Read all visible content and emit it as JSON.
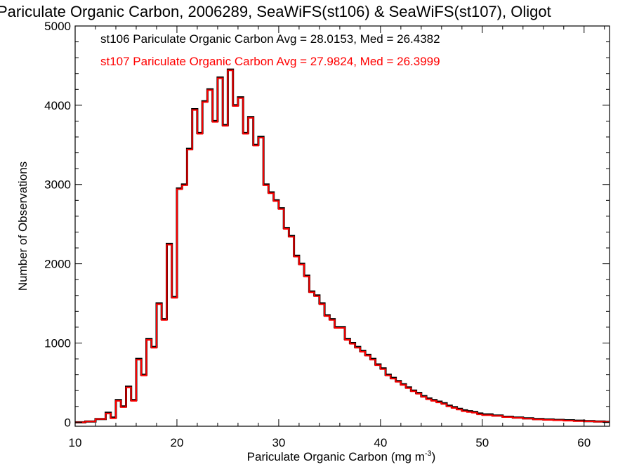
{
  "chart_data": {
    "type": "histogram",
    "title": "Pariculate Organic Carbon, 2006289, SeaWiFS(st106) & SeaWiFS(st107), Oligot",
    "xlabel": "Pariculate Organic Carbon (mg m",
    "xlabel_sup": "-3",
    "xlabel_end": ")",
    "ylabel": "Number of Observations",
    "xlim": [
      10,
      62.5
    ],
    "ylim": [
      -50,
      5000
    ],
    "xticks": [
      10,
      20,
      30,
      40,
      50,
      60
    ],
    "yticks": [
      0,
      1000,
      2000,
      3000,
      4000,
      5000
    ],
    "grid": false,
    "legend_position": "top-left",
    "series": [
      {
        "name": "st106",
        "color": "#000000",
        "annotation": "st106 Pariculate Organic Carbon Avg = 28.0153, Med = 26.4382",
        "x": [
          10,
          11,
          12,
          13,
          13.5,
          14,
          14.5,
          15,
          15.5,
          16,
          16.5,
          17,
          17.5,
          18,
          18.5,
          19,
          19.5,
          20,
          20.5,
          21,
          21.5,
          22,
          22.5,
          23,
          23.5,
          24,
          24.5,
          25,
          25.5,
          26,
          26.5,
          27,
          27.5,
          28,
          28.5,
          29,
          29.5,
          30,
          30.5,
          31,
          31.5,
          32,
          32.5,
          33,
          33.5,
          34,
          34.5,
          35,
          35.5,
          36,
          36.5,
          37,
          37.5,
          38,
          38.5,
          39,
          39.5,
          40,
          40.5,
          41,
          41.5,
          42,
          42.5,
          43,
          43.5,
          44,
          44.5,
          45,
          45.5,
          46,
          46.5,
          47,
          47.5,
          48,
          48.5,
          49,
          49.5,
          50,
          51,
          52,
          53,
          54,
          55,
          56,
          57,
          58,
          59,
          60,
          61,
          62
        ],
        "y": [
          0,
          10,
          40,
          120,
          60,
          280,
          200,
          450,
          280,
          800,
          600,
          1050,
          950,
          1500,
          1300,
          2250,
          1580,
          2950,
          3000,
          3450,
          3950,
          3650,
          4050,
          4200,
          3800,
          4350,
          3750,
          4450,
          4000,
          4100,
          3650,
          3850,
          3500,
          3600,
          3000,
          2900,
          2800,
          2700,
          2450,
          2350,
          2100,
          2000,
          1850,
          1650,
          1600,
          1500,
          1350,
          1300,
          1200,
          1200,
          1050,
          1000,
          950,
          900,
          850,
          800,
          730,
          680,
          600,
          560,
          520,
          480,
          440,
          400,
          370,
          330,
          300,
          280,
          260,
          240,
          210,
          190,
          170,
          150,
          140,
          130,
          110,
          100,
          85,
          70,
          60,
          50,
          40,
          35,
          30,
          25,
          20,
          15,
          10,
          5
        ]
      },
      {
        "name": "st107",
        "color": "#ff0000",
        "annotation": "st107 Pariculate Organic Carbon Avg = 27.9824, Med = 26.3999",
        "x": [
          10,
          11,
          12,
          13,
          13.5,
          14,
          14.5,
          15,
          15.5,
          16,
          16.5,
          17,
          17.5,
          18,
          18.5,
          19,
          19.5,
          20,
          20.5,
          21,
          21.5,
          22,
          22.5,
          23,
          23.5,
          24,
          24.5,
          25,
          25.5,
          26,
          26.5,
          27,
          27.5,
          28,
          28.5,
          29,
          29.5,
          30,
          30.5,
          31,
          31.5,
          32,
          32.5,
          33,
          33.5,
          34,
          34.5,
          35,
          35.5,
          36,
          36.5,
          37,
          37.5,
          38,
          38.5,
          39,
          39.5,
          40,
          40.5,
          41,
          41.5,
          42,
          42.5,
          43,
          43.5,
          44,
          44.5,
          45,
          45.5,
          46,
          46.5,
          47,
          47.5,
          48,
          48.5,
          49,
          49.5,
          50,
          51,
          52,
          53,
          54,
          55,
          56,
          57,
          58,
          59,
          60,
          61,
          62
        ],
        "y": [
          0,
          10,
          40,
          110,
          50,
          270,
          190,
          440,
          270,
          790,
          590,
          1040,
          940,
          1490,
          1290,
          2240,
          1570,
          2940,
          2990,
          3440,
          3940,
          3640,
          4040,
          4190,
          3790,
          4340,
          3740,
          4440,
          3990,
          4090,
          3640,
          3840,
          3490,
          3590,
          2990,
          2890,
          2790,
          2690,
          2440,
          2340,
          2090,
          1990,
          1840,
          1640,
          1590,
          1490,
          1340,
          1290,
          1190,
          1190,
          1040,
          990,
          940,
          890,
          840,
          790,
          720,
          670,
          590,
          550,
          510,
          470,
          430,
          390,
          360,
          320,
          290,
          270,
          250,
          230,
          200,
          180,
          160,
          140,
          130,
          120,
          100,
          90,
          80,
          65,
          55,
          45,
          35,
          30,
          25,
          20,
          15,
          12,
          8,
          4
        ]
      }
    ]
  }
}
